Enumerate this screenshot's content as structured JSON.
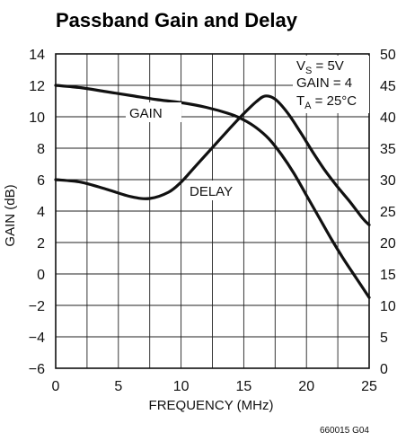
{
  "chart_data": {
    "type": "line",
    "title": "Passband Gain and Delay",
    "xlabel": "FREQUENCY (MHz)",
    "ylabel": "GAIN (dB)",
    "xlim": [
      0,
      25
    ],
    "ylim": [
      -6,
      14
    ],
    "y2lim": [
      0,
      50
    ],
    "x_ticks": [
      "0",
      "5",
      "10",
      "15",
      "20",
      "25"
    ],
    "y_ticks": [
      "14",
      "12",
      "10",
      "8",
      "6",
      "4",
      "2",
      "0",
      "−2",
      "−4",
      "−6"
    ],
    "y2_ticks": [
      "50",
      "45",
      "40",
      "35",
      "30",
      "25",
      "20",
      "15",
      "10",
      "5",
      "0"
    ],
    "grid": true,
    "conditions": {
      "vs_prefix": "V",
      "vs_sub": "S",
      "vs_suffix": " = 5V",
      "gain": "GAIN = 4",
      "ta_prefix": "T",
      "ta_sub": "A",
      "ta_suffix": " = 25°C"
    },
    "series": [
      {
        "name": "GAIN",
        "axis": "left",
        "x": [
          0,
          2,
          4,
          6,
          8,
          10,
          12,
          14,
          15,
          16,
          17,
          18,
          19,
          20,
          21,
          22,
          23,
          24,
          25
        ],
        "y": [
          12.0,
          11.85,
          11.6,
          11.35,
          11.1,
          10.9,
          10.6,
          10.15,
          9.8,
          9.3,
          8.6,
          7.6,
          6.4,
          5.0,
          3.6,
          2.2,
          0.9,
          -0.3,
          -1.5
        ]
      },
      {
        "name": "DELAY",
        "axis": "right",
        "x": [
          0,
          2,
          4,
          6,
          7.5,
          9,
          10,
          11,
          12,
          13,
          14,
          15,
          16,
          16.7,
          17.5,
          18.5,
          19.5,
          20.5,
          21.5,
          22.5,
          23.5,
          24.5,
          25
        ],
        "y": [
          30.0,
          29.6,
          28.5,
          27.3,
          27.0,
          28.0,
          29.6,
          31.8,
          34.0,
          36.2,
          38.4,
          40.5,
          42.4,
          43.3,
          42.8,
          40.6,
          37.6,
          34.4,
          31.4,
          28.8,
          26.4,
          23.8,
          22.8
        ]
      }
    ],
    "figure_code": "660015 G04"
  }
}
